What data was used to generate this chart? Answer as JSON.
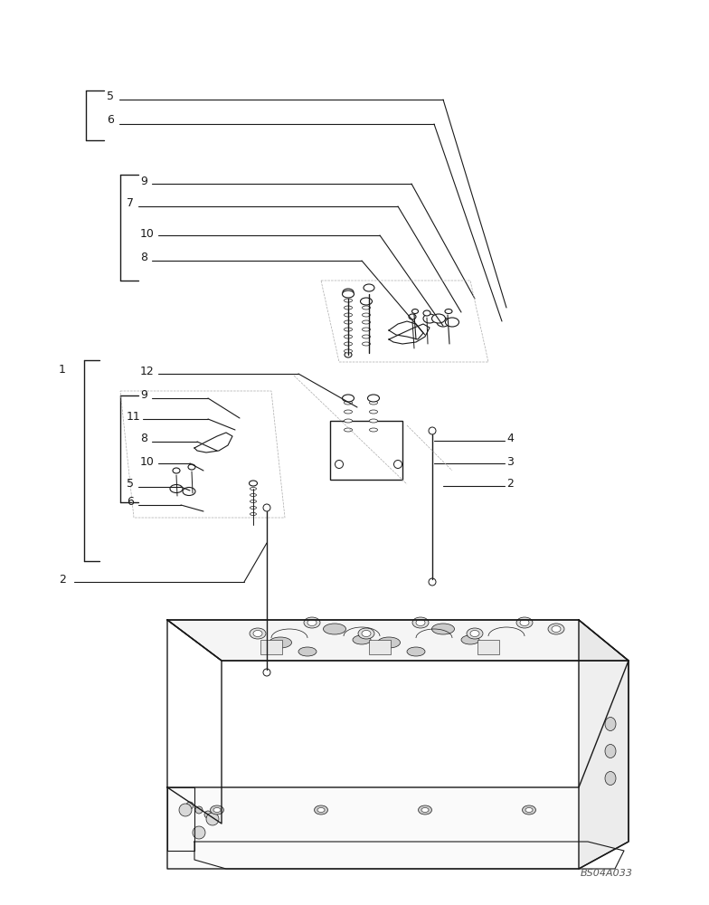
{
  "bg_color": "#ffffff",
  "line_color": "#1a1a1a",
  "label_color": "#1a1a1a",
  "watermark": "BS04A033",
  "fig_width": 7.84,
  "fig_height": 10.0,
  "dpi": 100
}
